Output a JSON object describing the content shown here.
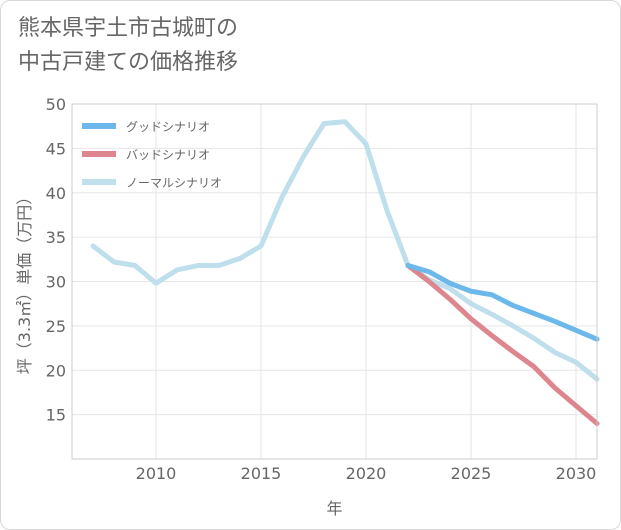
{
  "title_lines": [
    "熊本県宇土市古城町の",
    "中古戸建ての価格推移"
  ],
  "chart_data": {
    "type": "line",
    "title": "熊本県宇土市古城町の中古戸建ての価格推移",
    "xlabel": "年",
    "ylabel": "坪（3.3㎡）単価（万円）",
    "xlim": [
      2006,
      2031
    ],
    "ylim": [
      10,
      50
    ],
    "x_ticks": [
      2010,
      2015,
      2020,
      2025,
      2030
    ],
    "y_ticks": [
      15,
      20,
      25,
      30,
      35,
      40,
      45,
      50
    ],
    "grid": true,
    "legend_position": "top-left",
    "series": [
      {
        "name": "グッドシナリオ",
        "color": "#6cb8ea",
        "x": [
          2022,
          2023,
          2024,
          2025,
          2026,
          2027,
          2028,
          2029,
          2030,
          2031
        ],
        "values": [
          31.8,
          31.1,
          29.8,
          28.9,
          28.5,
          27.3,
          26.4,
          25.5,
          24.5,
          23.5
        ]
      },
      {
        "name": "バッドシナリオ",
        "color": "#dd868e",
        "x": [
          2022,
          2023,
          2024,
          2025,
          2026,
          2027,
          2028,
          2029,
          2030,
          2031
        ],
        "values": [
          31.8,
          30.0,
          28.0,
          25.8,
          23.9,
          22.1,
          20.4,
          18.0,
          16.0,
          14.0
        ]
      },
      {
        "name": "ノーマルシナリオ",
        "color": "#bfdfec",
        "x": [
          2007,
          2008,
          2009,
          2010,
          2011,
          2012,
          2013,
          2014,
          2015,
          2016,
          2017,
          2018,
          2019,
          2020,
          2021,
          2022,
          2023,
          2024,
          2025,
          2026,
          2027,
          2028,
          2029,
          2030,
          2031
        ],
        "values": [
          34.0,
          32.2,
          31.8,
          29.8,
          31.3,
          31.8,
          31.8,
          32.6,
          34.0,
          39.5,
          44.0,
          47.8,
          48.0,
          45.5,
          38.0,
          31.8,
          30.2,
          29.2,
          27.5,
          26.3,
          25.0,
          23.6,
          22.0,
          20.9,
          19.0
        ]
      }
    ]
  }
}
